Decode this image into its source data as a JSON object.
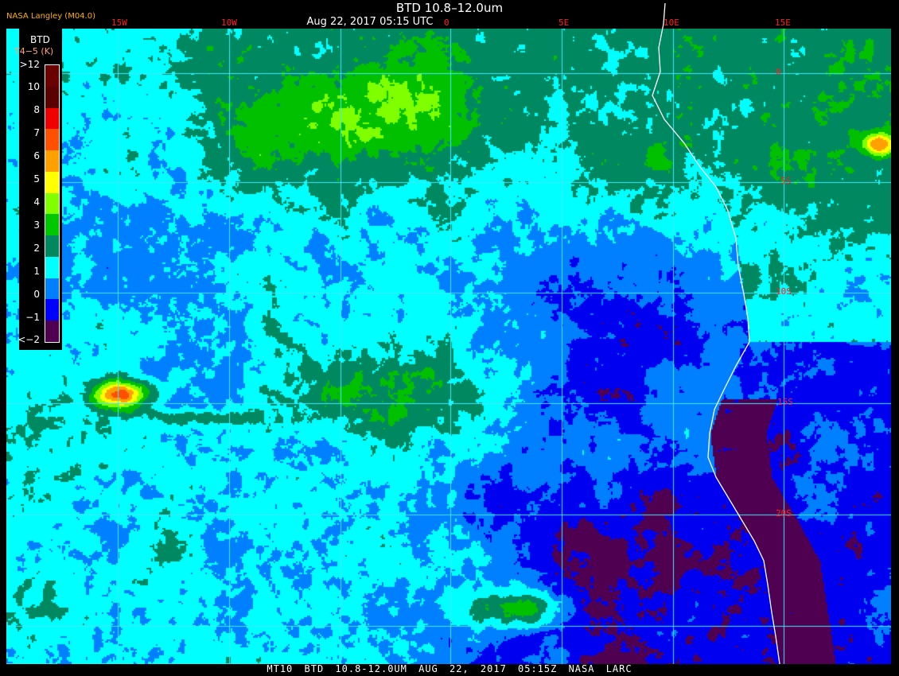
{
  "header": {
    "title": "BTD 10.8–12.0um",
    "subtitle": "Aug 22, 2017 05:15 UTC",
    "credit": "NASA Langley (M04.0)"
  },
  "grid": {
    "longitude_labels": [
      "15W",
      "10W",
      "0",
      "5E",
      "10E",
      "15E"
    ],
    "latitude_labels": [
      "0",
      "5S",
      "10S",
      "15S",
      "20S"
    ],
    "line_color": "#40e8ff",
    "label_color": "#ff2020",
    "coastline_color": "#ffffff"
  },
  "legend": {
    "title": "BTD",
    "units": "T4−5 (K)",
    "labels": [
      ">12",
      "10",
      "8",
      "7",
      "6",
      "5",
      "4",
      "3",
      "2",
      "1",
      "0",
      "−1",
      "<−2"
    ],
    "colors": [
      "#6a0000",
      "#5a0000",
      "#f00000",
      "#ff5000",
      "#ffa000",
      "#ffff00",
      "#80ff00",
      "#00c800",
      "#008860",
      "#00ffff",
      "#0080ff",
      "#0000ff",
      "#500050"
    ]
  },
  "footer": "MT10  BTD 10.8-12.0UM   AUG 22, 2017 05:15Z   NASA LARC"
}
